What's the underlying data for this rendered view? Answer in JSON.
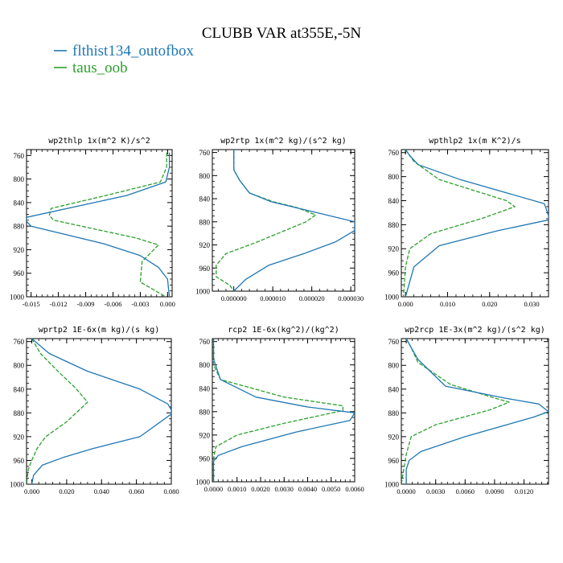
{
  "figure": {
    "title": "CLUBB VAR at355E,-5N",
    "legend": [
      {
        "label": "flthist134_outofbox",
        "color": "#1f77b4",
        "dash": "solid"
      },
      {
        "label": "taus_oob",
        "color": "#2ca02c",
        "dash": "dashed"
      }
    ]
  },
  "chart_data": [
    {
      "type": "line",
      "title": "wp2thlp   1x(m^2 K)/s^2",
      "xlim": [
        -0.0155,
        0.0005
      ],
      "ylim": [
        1000,
        750
      ],
      "xticks": [
        -0.015,
        -0.012,
        -0.009,
        -0.006,
        -0.003,
        0.0
      ],
      "xtick_labels": [
        "-0.015",
        "-0.012",
        "-0.009",
        "-0.006",
        "-0.003",
        "0.000"
      ],
      "yticks": [
        760,
        800,
        840,
        880,
        920,
        960,
        1000
      ],
      "ytick_labels": [
        "760",
        "800",
        "840",
        "880",
        "920",
        "960",
        "1000"
      ],
      "series": [
        {
          "name": "flthist134_outofbox",
          "x": [
            0.0002,
            0.0002,
            -0.0002,
            -0.0045,
            -0.0155,
            -0.0155,
            -0.015,
            -0.007,
            -0.003,
            -0.001,
            0.0,
            0.0002
          ],
          "y": [
            755,
            780,
            805,
            828,
            865,
            872,
            880,
            910,
            930,
            950,
            970,
            1000
          ]
        },
        {
          "name": "taus_oob",
          "x": [
            -0.0001,
            -0.0001,
            -0.0008,
            -0.006,
            -0.0128,
            -0.013,
            -0.0125,
            -0.0035,
            -0.001,
            -0.0028,
            -0.003,
            -0.0002
          ],
          "y": [
            755,
            780,
            805,
            825,
            850,
            862,
            870,
            900,
            912,
            940,
            975,
            1000
          ]
        }
      ]
    },
    {
      "type": "line",
      "title": "wp2rtp   1x(m^2 kg)/(s^2 kg)",
      "xlim": [
        -5.5e-06,
        3.1e-05
      ],
      "ylim": [
        1000,
        755
      ],
      "xticks": [
        0.0,
        1e-05,
        2e-05,
        3e-05
      ],
      "xtick_labels": [
        "0.000000",
        "0.000010",
        "0.000020",
        "0.000030"
      ],
      "yticks": [
        760,
        800,
        840,
        880,
        920,
        960,
        1000
      ],
      "ytick_labels": [
        "760",
        "800",
        "840",
        "880",
        "920",
        "960",
        "1000"
      ],
      "series": [
        {
          "name": "flthist134_outofbox",
          "x": [
            0.0,
            0.0,
            1.5e-06,
            4e-06,
            9.5e-06,
            2e-05,
            3.1e-05,
            3.1e-05,
            2.6e-05,
            1.8e-05,
            9e-06,
            3e-06,
            0.0
          ],
          "y": [
            755,
            790,
            808,
            830,
            845,
            862,
            880,
            895,
            915,
            935,
            955,
            980,
            1000
          ]
        },
        {
          "name": "taus_oob",
          "x": [
            0.0,
            0.0,
            1.5e-06,
            4e-06,
            1e-05,
            1.6e-05,
            2.1e-05,
            1.85e-05,
            6e-06,
            -2e-06,
            -4.5e-06,
            -4.5e-06,
            -1e-06,
            0.0
          ],
          "y": [
            755,
            790,
            808,
            830,
            845,
            855,
            868,
            880,
            915,
            935,
            955,
            975,
            990,
            1000
          ]
        }
      ]
    },
    {
      "type": "line",
      "title": "wpthlp2   1x(m K^2)/s",
      "xlim": [
        -0.001,
        0.034
      ],
      "ylim": [
        1000,
        755
      ],
      "xticks": [
        0.0,
        0.01,
        0.02,
        0.03
      ],
      "xtick_labels": [
        "0.000",
        "0.010",
        "0.020",
        "0.030"
      ],
      "yticks": [
        760,
        800,
        840,
        880,
        920,
        960,
        1000
      ],
      "ytick_labels": [
        "760",
        "800",
        "840",
        "880",
        "920",
        "960",
        "1000"
      ],
      "series": [
        {
          "name": "flthist134_outofbox",
          "x": [
            0.0,
            0.001,
            0.003,
            0.013,
            0.033,
            0.034,
            0.034,
            0.022,
            0.008,
            0.002,
            0.0
          ],
          "y": [
            755,
            765,
            780,
            805,
            845,
            865,
            872,
            890,
            915,
            950,
            1000
          ]
        },
        {
          "name": "taus_oob",
          "x": [
            0.0,
            0.0005,
            0.002,
            0.008,
            0.024,
            0.026,
            0.018,
            0.006,
            0.001,
            0.0,
            -0.0005
          ],
          "y": [
            755,
            760,
            775,
            805,
            840,
            850,
            870,
            895,
            920,
            950,
            1000
          ]
        }
      ]
    },
    {
      "type": "line",
      "title": "wprtp2   1E-6x(m kg)/(s kg)",
      "xlim": [
        -0.003,
        0.08
      ],
      "ylim": [
        1000,
        755
      ],
      "xticks": [
        0.0,
        0.02,
        0.04,
        0.06,
        0.08
      ],
      "xtick_labels": [
        "0.000",
        "0.020",
        "0.040",
        "0.060",
        "0.080"
      ],
      "yticks": [
        760,
        800,
        840,
        880,
        920,
        960,
        1000
      ],
      "ytick_labels": [
        "760",
        "800",
        "840",
        "880",
        "920",
        "960",
        "1000"
      ],
      "series": [
        {
          "name": "flthist134_outofbox",
          "x": [
            0.0,
            0.01,
            0.032,
            0.062,
            0.078,
            0.08,
            0.08,
            0.062,
            0.035,
            0.018,
            0.006,
            0.001,
            0.0
          ],
          "y": [
            755,
            780,
            810,
            840,
            865,
            875,
            882,
            920,
            940,
            955,
            968,
            985,
            1000
          ]
        },
        {
          "name": "taus_oob",
          "x": [
            0.0,
            0.005,
            0.015,
            0.025,
            0.032,
            0.02,
            0.008,
            0.003,
            0.0,
            -0.002,
            -0.003
          ],
          "y": [
            755,
            780,
            810,
            838,
            862,
            895,
            920,
            940,
            960,
            975,
            1000
          ]
        }
      ]
    },
    {
      "type": "line",
      "title": "rcp2   1E-6x(kg^2)/(kg^2)",
      "xlim": [
        -5e-05,
        0.006
      ],
      "ylim": [
        1000,
        755
      ],
      "xticks": [
        0.0,
        0.001,
        0.002,
        0.003,
        0.004,
        0.005,
        0.006
      ],
      "xtick_labels": [
        "0.0000",
        "0.0010",
        "0.0020",
        "0.0030",
        "0.0040",
        "0.0050",
        "0.0060"
      ],
      "yticks": [
        760,
        800,
        840,
        880,
        920,
        960,
        1000
      ],
      "ytick_labels": [
        "760",
        "800",
        "840",
        "880",
        "920",
        "960",
        "1000"
      ],
      "series": [
        {
          "name": "flthist134_outofbox",
          "x": [
            0.0,
            0.0,
            0.0003,
            0.0018,
            0.004,
            0.006,
            0.0058,
            0.0035,
            0.0012,
            0.0002,
            0.0,
            0.0
          ],
          "y": [
            755,
            790,
            825,
            855,
            872,
            882,
            895,
            915,
            940,
            955,
            965,
            1000
          ]
        },
        {
          "name": "taus_oob",
          "x": [
            0.0,
            0.0,
            0.0003,
            0.003,
            0.0055,
            0.0055,
            0.003,
            0.001,
            0.0001,
            0.0,
            0.0
          ],
          "y": [
            755,
            800,
            825,
            855,
            870,
            878,
            900,
            920,
            940,
            960,
            1000
          ]
        }
      ]
    },
    {
      "type": "line",
      "title": "wp2rcp   1E-3x(m^2 kg)/(s^2 kg)",
      "xlim": [
        -0.0005,
        0.0145
      ],
      "ylim": [
        1000,
        755
      ],
      "xticks": [
        0.0,
        0.003,
        0.006,
        0.009,
        0.012
      ],
      "xtick_labels": [
        "0.0000",
        "0.0030",
        "0.0060",
        "0.0090",
        "0.0120"
      ],
      "yticks": [
        760,
        800,
        840,
        880,
        920,
        960,
        1000
      ],
      "ytick_labels": [
        "760",
        "800",
        "840",
        "880",
        "920",
        "960",
        "1000"
      ],
      "series": [
        {
          "name": "flthist134_outofbox",
          "x": [
            0.0,
            0.0005,
            0.0012,
            0.004,
            0.01,
            0.0135,
            0.0145,
            0.013,
            0.006,
            0.0015,
            0.0003,
            0.0,
            0.0
          ],
          "y": [
            755,
            770,
            790,
            835,
            855,
            865,
            878,
            887,
            920,
            945,
            960,
            975,
            1000
          ]
        },
        {
          "name": "taus_oob",
          "x": [
            0.0,
            0.0005,
            0.0012,
            0.0045,
            0.009,
            0.0105,
            0.0085,
            0.003,
            0.0005,
            0.0,
            -0.0005
          ],
          "y": [
            755,
            770,
            795,
            832,
            855,
            862,
            875,
            900,
            920,
            950,
            1000
          ]
        }
      ]
    }
  ]
}
